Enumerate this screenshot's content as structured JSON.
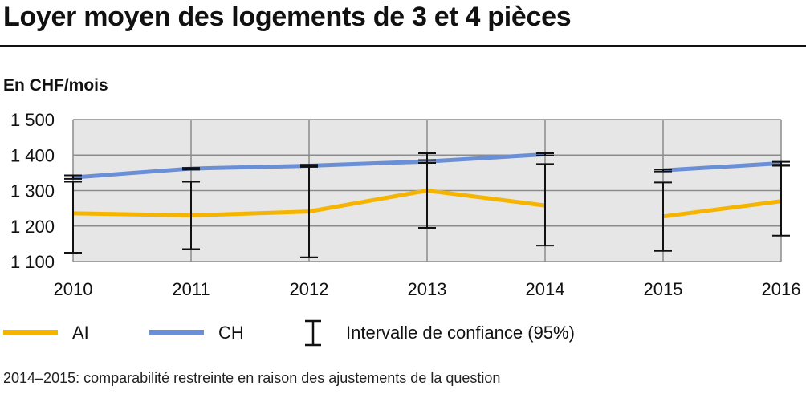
{
  "header": {
    "title": "Loyer moyen des logements de 3 et 4 pièces",
    "unit": "En CHF/mois"
  },
  "legend": {
    "ai": "AI",
    "ch": "CH",
    "ci": "Intervalle de confiance (95%)"
  },
  "footnote": "2014–2015: comparabilité restreinte en raison des ajustements de la question",
  "colors": {
    "AI": "#f5b400",
    "CH": "#6b8fd6",
    "plot_bg": "#e6e6e6",
    "grid": "#8c8c8c"
  },
  "chart_data": {
    "type": "line",
    "title": "Loyer moyen des logements de 3 et 4 pièces",
    "ylabel": "En CHF/mois",
    "xlabel": "",
    "categories": [
      "2010",
      "2011",
      "2012",
      "2013",
      "2014",
      "2015",
      "2016"
    ],
    "ylim": [
      1100,
      1500
    ],
    "yticks": [
      1100,
      1200,
      1300,
      1400,
      1500
    ],
    "ytick_labels": [
      "1 100",
      "1 200",
      "1 300",
      "1 400",
      "1 500"
    ],
    "grid": true,
    "legend_position": "bottom",
    "line_break_between": [
      "2014",
      "2015"
    ],
    "series": [
      {
        "name": "AI",
        "values": [
          1236,
          1230,
          1241,
          1300,
          1258,
          1227,
          1270
        ],
        "ci_low": [
          1125,
          1135,
          1112,
          1195,
          1145,
          1130,
          1173
        ],
        "ci_high": [
          1325,
          1325,
          1370,
          1405,
          1375,
          1323,
          1370
        ]
      },
      {
        "name": "CH",
        "values": [
          1337,
          1362,
          1370,
          1382,
          1402,
          1357,
          1377
        ],
        "ci_low": [
          1333,
          1359,
          1367,
          1378,
          1399,
          1354,
          1373
        ],
        "ci_high": [
          1343,
          1364,
          1373,
          1386,
          1405,
          1360,
          1381
        ]
      }
    ]
  }
}
